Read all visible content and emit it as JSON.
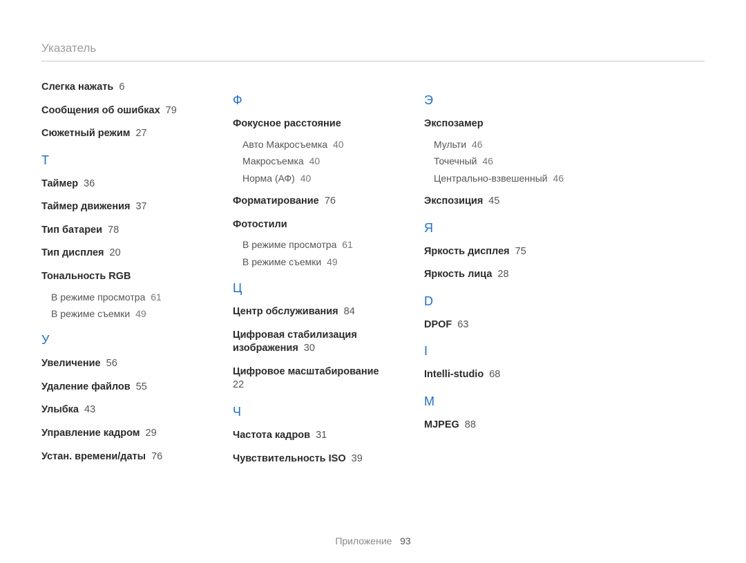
{
  "header": "Указатель",
  "footer": {
    "label": "Приложение",
    "page": "93"
  },
  "columns": [
    {
      "groups": [
        {
          "letter": null,
          "entries": [
            {
              "label": "Слегка нажать",
              "page": "6"
            },
            {
              "label": "Сообщения об ошибках",
              "page": "79"
            },
            {
              "label": "Сюжетный режим",
              "page": "27"
            }
          ]
        },
        {
          "letter": "Т",
          "entries": [
            {
              "label": "Таймер",
              "page": "36"
            },
            {
              "label": "Таймер движения",
              "page": "37"
            },
            {
              "label": "Тип батареи",
              "page": "78"
            },
            {
              "label": "Тип дисплея",
              "page": "20"
            },
            {
              "label": "Тональность RGB",
              "children": [
                {
                  "label": "В режиме просмотра",
                  "page": "61"
                },
                {
                  "label": "В режиме съемки",
                  "page": "49"
                }
              ]
            }
          ]
        },
        {
          "letter": "У",
          "entries": [
            {
              "label": "Увеличение",
              "page": "56"
            },
            {
              "label": "Удаление файлов",
              "page": "55"
            },
            {
              "label": "Улыбка",
              "page": "43"
            },
            {
              "label": "Управление кадром",
              "page": "29"
            },
            {
              "label": "Устан. времени/даты",
              "page": "76"
            }
          ]
        }
      ]
    },
    {
      "groups": [
        {
          "letter": "Ф",
          "entries": [
            {
              "label": "Фокусное расстояние",
              "children": [
                {
                  "label": "Авто Макросъемка",
                  "page": "40"
                },
                {
                  "label": "Макросъемка",
                  "page": "40"
                },
                {
                  "label": "Норма (АФ)",
                  "page": "40"
                }
              ]
            },
            {
              "label": "Форматирование",
              "page": "76"
            },
            {
              "label": "Фотостили",
              "children": [
                {
                  "label": "В режиме просмотра",
                  "page": "61"
                },
                {
                  "label": "В режиме съемки",
                  "page": "49"
                }
              ]
            }
          ]
        },
        {
          "letter": "Ц",
          "entries": [
            {
              "label": "Центр обслуживания",
              "page": "84"
            },
            {
              "label": "Цифровая стабилизация изображения",
              "page": "30"
            },
            {
              "label": "Цифровое масштабирование",
              "page": "22"
            }
          ]
        },
        {
          "letter": "Ч",
          "entries": [
            {
              "label": "Частота кадров",
              "page": "31"
            },
            {
              "label": "Чувствительность ISO",
              "page": "39"
            }
          ]
        }
      ]
    },
    {
      "groups": [
        {
          "letter": "Э",
          "entries": [
            {
              "label": "Экспозамер",
              "children": [
                {
                  "label": "Мульти",
                  "page": "46"
                },
                {
                  "label": "Точечный",
                  "page": "46"
                },
                {
                  "label": "Центрально-взвешенный",
                  "page": "46"
                }
              ]
            },
            {
              "label": "Экспозиция",
              "page": "45"
            }
          ]
        },
        {
          "letter": "Я",
          "entries": [
            {
              "label": "Яркость дисплея",
              "page": "75"
            },
            {
              "label": "Яркость лица",
              "page": "28"
            }
          ]
        },
        {
          "letter": "D",
          "entries": [
            {
              "label": "DPOF",
              "page": "63"
            }
          ]
        },
        {
          "letter": "I",
          "entries": [
            {
              "label": "Intelli-studio",
              "page": "68"
            }
          ]
        },
        {
          "letter": "M",
          "entries": [
            {
              "label": "MJPEG",
              "page": "88"
            }
          ]
        }
      ]
    }
  ]
}
